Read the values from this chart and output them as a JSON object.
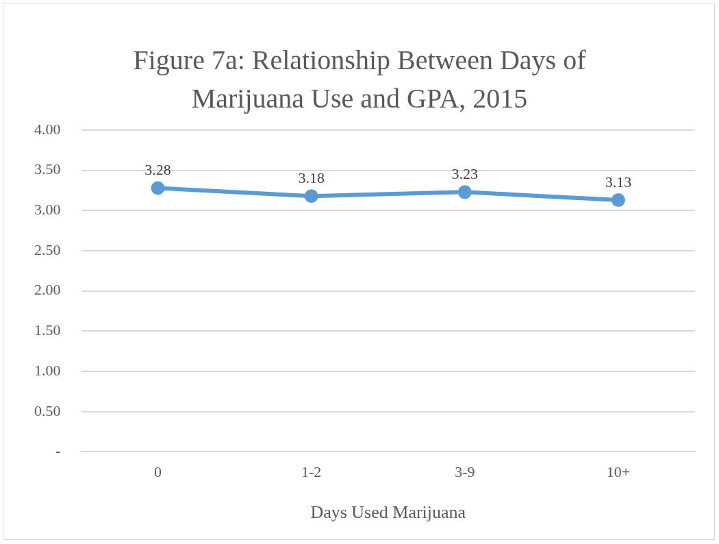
{
  "chart_data": {
    "type": "line",
    "title": "Figure 7a:  Relationship Between Days of Marijuana Use and GPA, 2015",
    "xlabel": "Days Used Marijuana",
    "categories": [
      "0",
      "1-2",
      "3-9",
      "10+"
    ],
    "series": [
      {
        "color": "#5b9bd5",
        "values": [
          3.28,
          3.18,
          3.23,
          3.13
        ]
      }
    ],
    "data_labels": true,
    "marker": "circle",
    "line_style": "solid",
    "grid": "y",
    "legend": false,
    "ylim": [
      0,
      4
    ],
    "yticks": [
      {
        "value": 0,
        "label": "-"
      },
      {
        "value": 0.5,
        "label": "0.50"
      },
      {
        "value": 1,
        "label": "1.00"
      },
      {
        "value": 1.5,
        "label": "1.50"
      },
      {
        "value": 2,
        "label": "2.00"
      },
      {
        "value": 2.5,
        "label": "2.50"
      },
      {
        "value": 3,
        "label": "3.00"
      },
      {
        "value": 3.5,
        "label": "3.50"
      },
      {
        "value": 4,
        "label": "4.00"
      }
    ]
  }
}
